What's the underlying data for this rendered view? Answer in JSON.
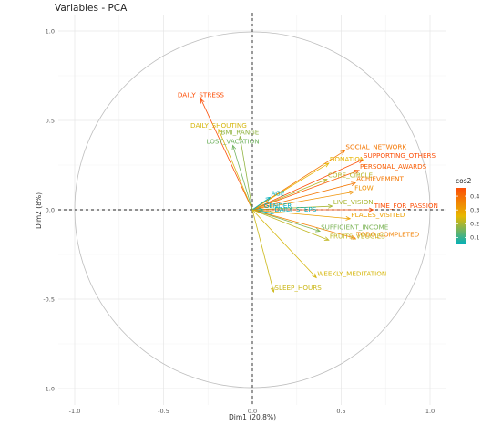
{
  "chart_data": {
    "type": "scatter",
    "subtype": "pca-variable-correlation-circle",
    "title": "Variables - PCA",
    "xlabel": "Dim1 (20.8%)",
    "ylabel": "Dim2 (8%)",
    "xlim": [
      -1.0,
      1.0
    ],
    "ylim": [
      -1.0,
      1.0
    ],
    "xticks": [
      "-1.0",
      "-0.5",
      "0.0",
      "0.5",
      "1.0"
    ],
    "yticks": [
      "-1.0",
      "-0.5",
      "0.0",
      "0.5",
      "1.0"
    ],
    "grid": true,
    "legend": {
      "title": "cos2",
      "position": "right",
      "ticks": [
        "0.4",
        "0.3",
        "0.2",
        "0.1"
      ],
      "tick_values": [
        0.4,
        0.3,
        0.2,
        0.1
      ],
      "range": [
        0.05,
        0.46
      ],
      "colors": [
        "#00AFBB",
        "#E7B800",
        "#FC4E07"
      ]
    },
    "variables": [
      {
        "name": "DAILY_STRESS",
        "x": -0.29,
        "y": 0.62,
        "cos2": 0.47
      },
      {
        "name": "DAILY_SHOUTING",
        "x": -0.19,
        "y": 0.45,
        "cos2": 0.24
      },
      {
        "name": "BMI_RANGE",
        "x": -0.07,
        "y": 0.41,
        "cos2": 0.18
      },
      {
        "name": "LOST_VACATION",
        "x": -0.11,
        "y": 0.36,
        "cos2": 0.15
      },
      {
        "name": "SOCIAL_NETWORK",
        "x": 0.52,
        "y": 0.33,
        "cos2": 0.38
      },
      {
        "name": "DONATION",
        "x": 0.43,
        "y": 0.26,
        "cos2": 0.26
      },
      {
        "name": "SUPPORTING_OTHERS",
        "x": 0.62,
        "y": 0.28,
        "cos2": 0.46
      },
      {
        "name": "PERSONAL_AWARDS",
        "x": 0.6,
        "y": 0.22,
        "cos2": 0.43
      },
      {
        "name": "CORE_CIRCLE",
        "x": 0.42,
        "y": 0.17,
        "cos2": 0.21
      },
      {
        "name": "ACHIEVEMENT",
        "x": 0.58,
        "y": 0.15,
        "cos2": 0.38
      },
      {
        "name": "FLOW",
        "x": 0.57,
        "y": 0.1,
        "cos2": 0.33
      },
      {
        "name": "AGE",
        "x": 0.1,
        "y": 0.07,
        "cos2": 0.02
      },
      {
        "name": "LIVE_VISION",
        "x": 0.45,
        "y": 0.02,
        "cos2": 0.2
      },
      {
        "name": "TIME_FOR_PASSION",
        "x": 0.68,
        "y": 0.0,
        "cos2": 0.46
      },
      {
        "name": "GENDER",
        "x": 0.06,
        "y": 0.0,
        "cos2": 0.01
      },
      {
        "name": "DAILY_STEPS",
        "x": 0.12,
        "y": -0.02,
        "cos2": 0.02
      },
      {
        "name": "PLACES_VISITED",
        "x": 0.55,
        "y": -0.05,
        "cos2": 0.3
      },
      {
        "name": "SUFFICIENT_INCOME",
        "x": 0.38,
        "y": -0.12,
        "cos2": 0.16
      },
      {
        "name": "TODO_COMPLETED",
        "x": 0.58,
        "y": -0.16,
        "cos2": 0.36
      },
      {
        "name": "FRUITS_VEGGIES",
        "x": 0.43,
        "y": -0.17,
        "cos2": 0.22
      },
      {
        "name": "WEEKLY_MEDITATION",
        "x": 0.36,
        "y": -0.38,
        "cos2": 0.24
      },
      {
        "name": "SLEEP_HOURS",
        "x": 0.12,
        "y": -0.46,
        "cos2": 0.23
      }
    ]
  }
}
